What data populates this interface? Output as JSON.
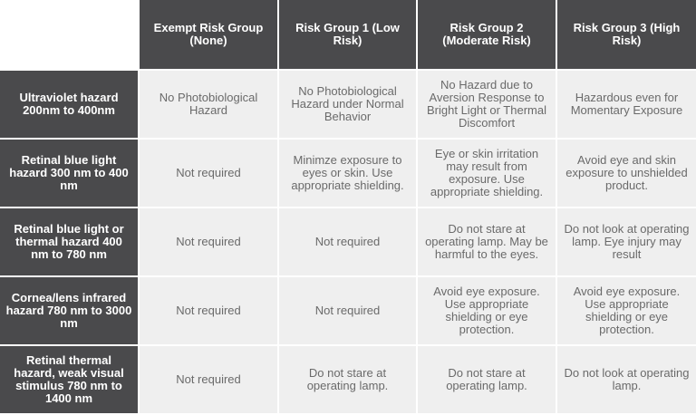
{
  "colors": {
    "header_bg": "#4a4a4c",
    "cell_bg": "#efefef",
    "header_text": "#ffffff",
    "cell_text": "#6a6a6a"
  },
  "columns": [
    "Exempt Risk Group (None)",
    "Risk Group 1 (Low Risk)",
    "Risk Group 2 (Moderate Risk)",
    "Risk Group 3 (High Risk)"
  ],
  "rows": [
    {
      "hazard": "Ultraviolet hazard 200nm to 400nm",
      "cells": [
        "No Photobiological Hazard",
        "No Photobiological Hazard under Normal Behavior",
        "No Hazard due to Aversion Response to Bright Light or Thermal Discomfort",
        "Hazardous even for Momentary Exposure"
      ]
    },
    {
      "hazard": "Retinal blue light hazard 300 nm to 400 nm",
      "cells": [
        "Not required",
        "Minimze exposure to eyes or skin. Use appropriate shielding.",
        "Eye or skin irritation may result from exposure. Use appropriate shielding.",
        "Avoid eye and skin exposure to unshielded product."
      ]
    },
    {
      "hazard": "Retinal blue light or thermal hazard 400 nm to 780 nm",
      "cells": [
        "Not required",
        "Not required",
        "Do not stare at operating lamp. May be harmful to the eyes.",
        "Do not look at operating lamp. Eye injury may result"
      ]
    },
    {
      "hazard": "Cornea/lens infrared hazard 780 nm to 3000 nm",
      "cells": [
        "Not required",
        "Not required",
        "Avoid eye exposure. Use appropriate shielding or eye protection.",
        "Avoid eye exposure. Use appropriate shielding or eye protection."
      ]
    },
    {
      "hazard": "Retinal thermal hazard, weak visual stimulus 780 nm to 1400 nm",
      "cells": [
        "Not required",
        "Do not stare at operating lamp.",
        "Do not stare at operating lamp.",
        "Do not look at operating lamp."
      ]
    }
  ]
}
